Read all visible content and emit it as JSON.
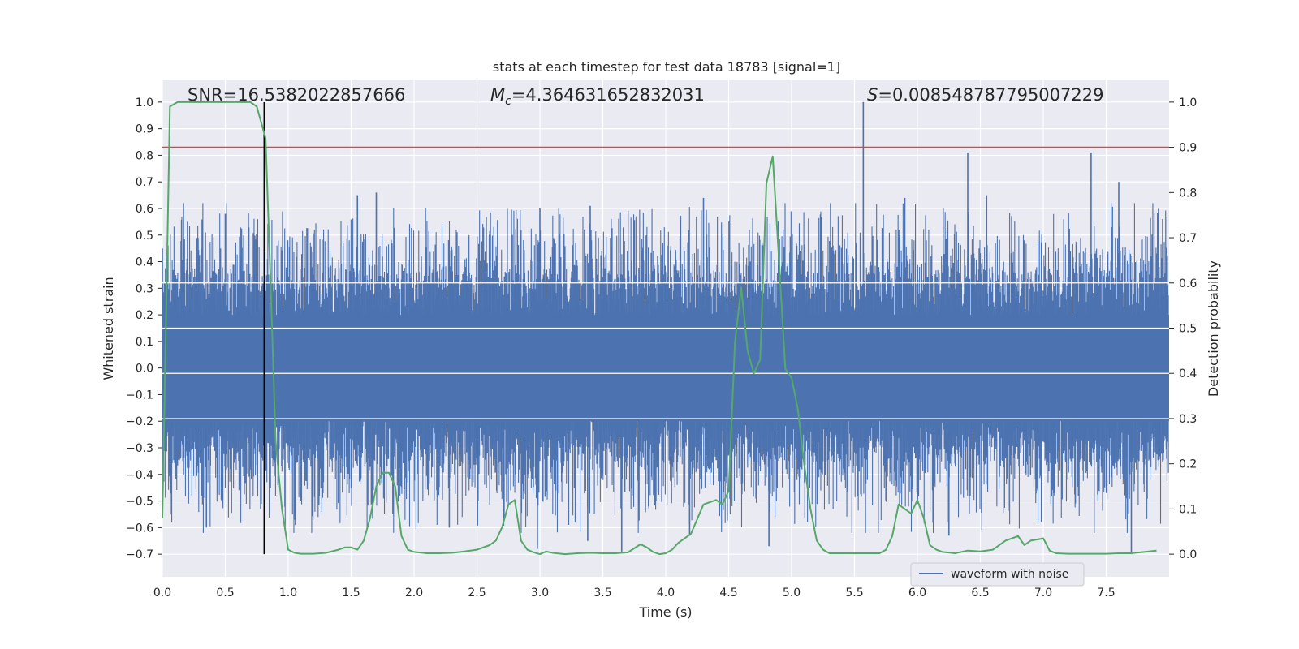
{
  "chart_data": {
    "type": "line",
    "title": "stats at each timestep for test data 18783 [signal=1]",
    "xlabel": "Time (s)",
    "ylabel_left": "Whitened strain",
    "ylabel_right": "Detection probability",
    "xlim": [
      0.0,
      8.0
    ],
    "ylim_left": [
      -0.785,
      1.085
    ],
    "ylim_right": [
      -0.05,
      1.05
    ],
    "x_ticks": [
      "0.0",
      "0.5",
      "1.0",
      "1.5",
      "2.0",
      "2.5",
      "3.0",
      "3.5",
      "4.0",
      "4.5",
      "5.0",
      "5.5",
      "6.0",
      "6.5",
      "7.0",
      "7.5"
    ],
    "y_left_ticks": [
      "−0.7",
      "−0.6",
      "−0.5",
      "−0.4",
      "−0.3",
      "−0.2",
      "−0.1",
      "0.0",
      "0.1",
      "0.2",
      "0.3",
      "0.4",
      "0.5",
      "0.6",
      "0.7",
      "0.8",
      "0.9",
      "1.0"
    ],
    "y_right_ticks": [
      "0.0",
      "0.1",
      "0.2",
      "0.3",
      "0.4",
      "0.5",
      "0.6",
      "0.7",
      "0.8",
      "0.9",
      "1.0"
    ],
    "annotations": {
      "snr": "SNR=16.5382022857666",
      "mc_symbol": "M",
      "mc_sub": "c",
      "mc_value": "=4.364631652832031",
      "s_symbol": "S",
      "s_value": "=0.008548787795007229"
    },
    "threshold": 0.9,
    "marker_time": 0.81,
    "legend": [
      "waveform with noise"
    ],
    "series": [
      {
        "name": "waveform with noise",
        "axis": "left",
        "color": "#4c72b0",
        "envelope": {
          "positive_median": 0.32,
          "negative_median": -0.32
        },
        "spikes": [
          {
            "x": 5.57,
            "y": 1.0
          },
          {
            "x": 6.4,
            "y": 0.81
          },
          {
            "x": 7.38,
            "y": 0.81
          },
          {
            "x": 7.6,
            "y": 0.7
          },
          {
            "x": 1.7,
            "y": 0.66
          },
          {
            "x": 1.55,
            "y": 0.65
          },
          {
            "x": 3.0,
            "y": 0.6
          },
          {
            "x": 4.3,
            "y": 0.64
          },
          {
            "x": 5.9,
            "y": 0.64
          },
          {
            "x": 6.55,
            "y": 0.65
          },
          {
            "x": 3.4,
            "y": 0.61
          },
          {
            "x": 0.5,
            "y": 0.58
          },
          {
            "x": 7.7,
            "y": -0.7
          },
          {
            "x": 2.98,
            "y": -0.68
          },
          {
            "x": 3.65,
            "y": -0.69
          },
          {
            "x": 0.35,
            "y": -0.6
          },
          {
            "x": 4.82,
            "y": -0.67
          },
          {
            "x": 3.38,
            "y": -0.65
          },
          {
            "x": 4.19,
            "y": -0.63
          },
          {
            "x": 6.25,
            "y": -0.63
          },
          {
            "x": 2.28,
            "y": -0.6
          }
        ]
      },
      {
        "name": "detection probability",
        "axis": "right",
        "color": "#55a868",
        "x": [
          0.0,
          0.06,
          0.12,
          0.2,
          0.3,
          0.4,
          0.5,
          0.6,
          0.7,
          0.75,
          0.82,
          0.86,
          0.9,
          0.95,
          1.0,
          1.05,
          1.1,
          1.2,
          1.3,
          1.4,
          1.45,
          1.5,
          1.55,
          1.6,
          1.65,
          1.7,
          1.75,
          1.8,
          1.85,
          1.9,
          1.95,
          2.0,
          2.1,
          2.2,
          2.3,
          2.4,
          2.5,
          2.6,
          2.65,
          2.7,
          2.75,
          2.8,
          2.85,
          2.9,
          2.95,
          3.0,
          3.05,
          3.1,
          3.2,
          3.3,
          3.4,
          3.5,
          3.6,
          3.7,
          3.8,
          3.85,
          3.9,
          3.95,
          4.0,
          4.05,
          4.1,
          4.2,
          4.3,
          4.4,
          4.45,
          4.5,
          4.55,
          4.6,
          4.65,
          4.7,
          4.75,
          4.8,
          4.85,
          4.9,
          4.95,
          5.0,
          5.05,
          5.1,
          5.15,
          5.2,
          5.25,
          5.3,
          5.4,
          5.5,
          5.6,
          5.7,
          5.75,
          5.8,
          5.85,
          5.9,
          5.95,
          6.0,
          6.05,
          6.1,
          6.15,
          6.2,
          6.3,
          6.4,
          6.5,
          6.6,
          6.7,
          6.8,
          6.85,
          6.9,
          7.0,
          7.05,
          7.1,
          7.2,
          7.3,
          7.4,
          7.5,
          7.6,
          7.7,
          7.8,
          7.9
        ],
        "y": [
          0.08,
          0.99,
          1.0,
          1.0,
          1.0,
          1.0,
          1.0,
          1.0,
          1.0,
          0.99,
          0.92,
          0.6,
          0.25,
          0.1,
          0.01,
          0.003,
          0.001,
          0.001,
          0.003,
          0.01,
          0.015,
          0.015,
          0.01,
          0.03,
          0.08,
          0.15,
          0.18,
          0.18,
          0.15,
          0.04,
          0.01,
          0.005,
          0.002,
          0.002,
          0.003,
          0.006,
          0.01,
          0.02,
          0.03,
          0.06,
          0.11,
          0.12,
          0.03,
          0.01,
          0.004,
          0.0,
          0.006,
          0.003,
          0.0,
          0.002,
          0.003,
          0.002,
          0.002,
          0.004,
          0.022,
          0.015,
          0.005,
          0.0,
          0.002,
          0.01,
          0.025,
          0.045,
          0.11,
          0.12,
          0.11,
          0.14,
          0.47,
          0.59,
          0.45,
          0.4,
          0.43,
          0.82,
          0.88,
          0.65,
          0.41,
          0.39,
          0.32,
          0.2,
          0.1,
          0.03,
          0.01,
          0.002,
          0.002,
          0.002,
          0.002,
          0.002,
          0.01,
          0.04,
          0.11,
          0.1,
          0.09,
          0.12,
          0.08,
          0.02,
          0.01,
          0.005,
          0.002,
          0.008,
          0.006,
          0.01,
          0.03,
          0.04,
          0.02,
          0.03,
          0.035,
          0.008,
          0.002,
          0.001,
          0.001,
          0.001,
          0.001,
          0.002,
          0.002,
          0.005,
          0.008
        ]
      }
    ]
  }
}
